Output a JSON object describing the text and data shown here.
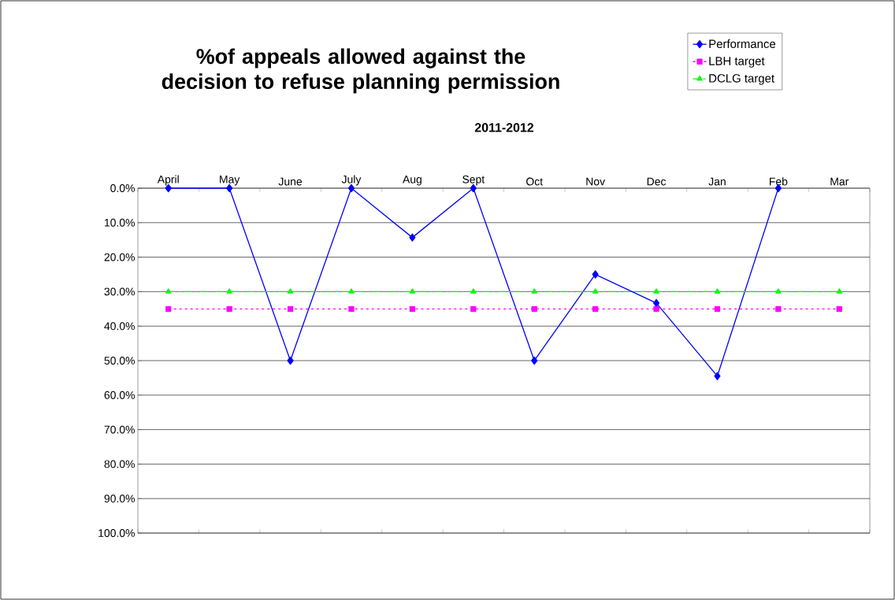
{
  "chart_data": {
    "type": "line",
    "title": "%of appeals allowed against the decision to refuse planning permission",
    "subtitle": "2011-2012",
    "categories": [
      "April",
      "May",
      "June",
      "July",
      "Aug",
      "Sept",
      "Oct",
      "Nov",
      "Dec",
      "Jan",
      "Feb",
      "Mar"
    ],
    "series": [
      {
        "name": "Performance",
        "color": "#0000ff",
        "marker": "diamond",
        "line_style": "solid",
        "values": [
          0,
          0,
          50,
          0,
          14.3,
          0,
          50,
          25,
          33.3,
          54.5,
          0,
          null
        ]
      },
      {
        "name": "LBH target",
        "color": "#ff00ff",
        "marker": "square",
        "line_style": "dotted",
        "values": [
          35,
          35,
          35,
          35,
          35,
          35,
          35,
          35,
          35,
          35,
          35,
          35
        ]
      },
      {
        "name": "DCLG target",
        "color": "#00ff00",
        "marker": "triangle",
        "line_style": "dashed",
        "values": [
          30,
          30,
          30,
          30,
          30,
          30,
          30,
          30,
          30,
          30,
          30,
          30
        ]
      }
    ],
    "ylim": [
      100,
      0
    ],
    "yticks": [
      {
        "value": 0,
        "label": "0.0%"
      },
      {
        "value": 10,
        "label": "10.0%"
      },
      {
        "value": 20,
        "label": "20.0%"
      },
      {
        "value": 30,
        "label": "30.0%"
      },
      {
        "value": 40,
        "label": "40.0%"
      },
      {
        "value": 50,
        "label": "50.0%"
      },
      {
        "value": 60,
        "label": "60.0%"
      },
      {
        "value": 70,
        "label": "70.0%"
      },
      {
        "value": 80,
        "label": "80.0%"
      },
      {
        "value": 90,
        "label": "90.0%"
      },
      {
        "value": 100,
        "label": "100.0%"
      }
    ],
    "grid": "y",
    "legend": "top right"
  }
}
